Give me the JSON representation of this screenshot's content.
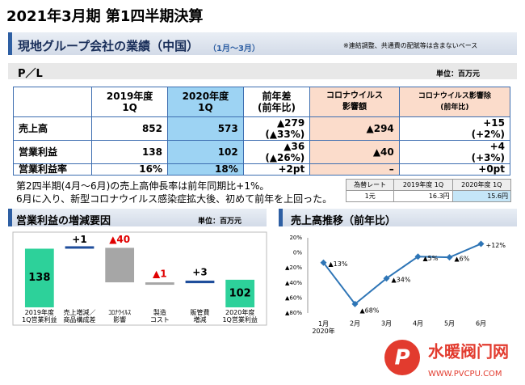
{
  "header": {
    "title": "2021年3月期 第1四半期決算"
  },
  "section": {
    "title": "現地グループ会社の業績（中国）",
    "period": "（1月～3月）",
    "note": "※連結調整、共通費の配賦等は含まないベース"
  },
  "pl": {
    "title": "P／L",
    "unit": "単位：百万元",
    "columns": [
      "",
      "2019年度\n1Q",
      "2020年度\n1Q",
      "前年差\n(前年比)",
      "コロナウイルス\n影響額",
      "コロナウイルス影響除\n(前年比)"
    ],
    "rows": [
      [
        "売上高",
        "852",
        "573",
        "▲279\n(▲33%)",
        "▲294",
        "+15\n(+2%)"
      ],
      [
        "営業利益",
        "138",
        "102",
        "▲36\n(▲26%)",
        "▲40",
        "+4\n(+3%)"
      ],
      [
        "営業利益率",
        "16%",
        "18%",
        "+2pt",
        "–",
        "+0pt"
      ]
    ]
  },
  "comment": [
    "第2四半期(4月～6月)の売上高伸長率は前年同期比+1%。",
    "6月に入り、新型コロナウイルス感染症拡大後、初めて前年を上回った。"
  ],
  "rate_table": {
    "columns": [
      "為替レート",
      "2019年度 1Q",
      "2020年度 1Q"
    ],
    "rows": [
      [
        "1元",
        "16.3円",
        "15.6円"
      ]
    ]
  },
  "chart_data": [
    {
      "type": "waterfall",
      "title": "営業利益の増減要因",
      "unit": "単位：百万元",
      "categories": [
        "2019年度\n1Q営業利益",
        "売上増減／\n商品構成差",
        "ｺﾛﾅｳｲﾙｽ\n影響",
        "製造\nコスト",
        "販管費\n増減",
        "2020年度\n1Q営業利益"
      ],
      "values": [
        138,
        1,
        -40,
        -1,
        3,
        102
      ],
      "value_labels": [
        "138",
        "+1",
        "▲40",
        "▲1",
        "+3",
        "102"
      ],
      "colors": {
        "total": "#2dd19a",
        "increase": "#1f4e9c",
        "decrease": "#a6a6a6",
        "decrease_label": "#e00000"
      },
      "ylim": [
        70,
        145
      ]
    },
    {
      "type": "line",
      "title": "売上高推移（前年比）",
      "categories": [
        "1月\n2020年",
        "2月",
        "3月",
        "4月",
        "5月",
        "6月"
      ],
      "values": [
        -13,
        -68,
        -34,
        -5,
        -6,
        12
      ],
      "value_labels": [
        "▲13%",
        "▲68%",
        "▲34%",
        "▲5%",
        "▲6%",
        "+12%"
      ],
      "color": "#2e75b6",
      "ylim": [
        -80,
        20
      ],
      "yticks": [
        {
          "value": 20,
          "label": "20%"
        },
        {
          "value": 0,
          "label": "0%"
        },
        {
          "value": -20,
          "label": "▲20%"
        },
        {
          "value": -40,
          "label": "▲40%"
        },
        {
          "value": -60,
          "label": "▲60%"
        },
        {
          "value": -80,
          "label": "▲80%"
        }
      ],
      "grid": false
    }
  ],
  "watermark": {
    "name": "水暖阀门网",
    "url": "WWW.PVCPU.COM"
  }
}
